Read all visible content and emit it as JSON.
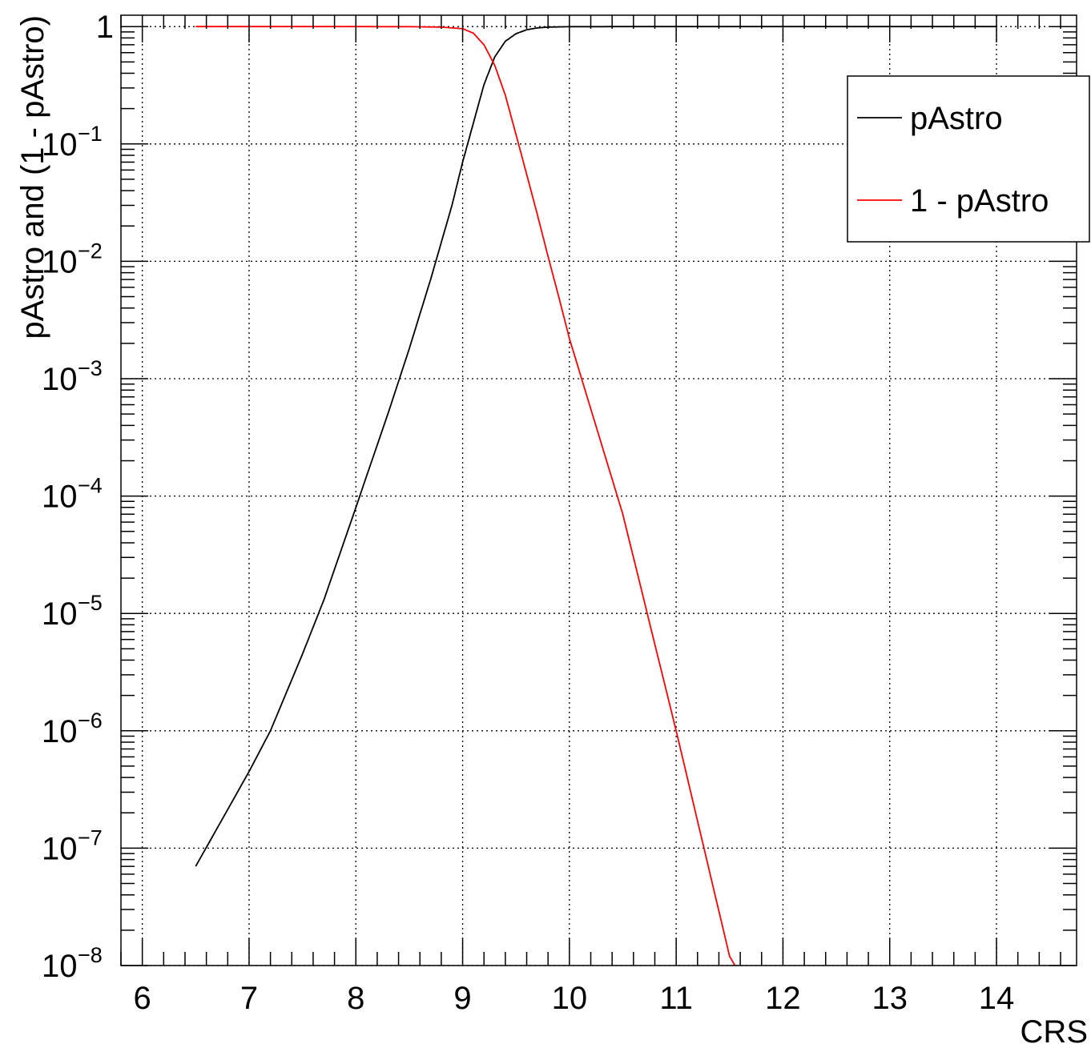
{
  "chart_data": {
    "type": "line",
    "title": "",
    "xlabel": "CRS",
    "ylabel": "pAstro and (1 - pAstro)",
    "xlim": [
      5.8,
      14.75
    ],
    "ylim": [
      1e-08,
      1.25
    ],
    "yscale": "log",
    "grid": true,
    "legend_position": "top-right",
    "x_tick_labels": [
      "6",
      "7",
      "8",
      "9",
      "10",
      "11",
      "12",
      "13",
      "14"
    ],
    "y_tick_labels": [
      {
        "base": "1",
        "exp": ""
      },
      {
        "base": "10",
        "exp": "−1"
      },
      {
        "base": "10",
        "exp": "−2"
      },
      {
        "base": "10",
        "exp": "−3"
      },
      {
        "base": "10",
        "exp": "−4"
      },
      {
        "base": "10",
        "exp": "−5"
      },
      {
        "base": "10",
        "exp": "−6"
      },
      {
        "base": "10",
        "exp": "−7"
      },
      {
        "base": "10",
        "exp": "−8"
      }
    ],
    "series": [
      {
        "name": "pAstro",
        "color": "#000000",
        "x": [
          6.5,
          7.0,
          7.2,
          7.5,
          7.7,
          8.0,
          8.3,
          8.5,
          8.7,
          8.9,
          9.0,
          9.1,
          9.2,
          9.3,
          9.4,
          9.5,
          9.6,
          9.7,
          9.8,
          10.0,
          10.5,
          11.0,
          12.0,
          13.0,
          14.0
        ],
        "y": [
          7e-08,
          4.5e-07,
          1e-06,
          4.5e-06,
          1.3e-05,
          8e-05,
          0.0005,
          0.0018,
          0.007,
          0.03,
          0.07,
          0.15,
          0.32,
          0.55,
          0.75,
          0.87,
          0.94,
          0.975,
          0.99,
          0.998,
          0.9999,
          1.0,
          1.0,
          1.0,
          1.0
        ]
      },
      {
        "name": "1 - pAstro",
        "color": "#ff0000",
        "x": [
          6.5,
          7.0,
          8.0,
          8.5,
          8.8,
          9.0,
          9.1,
          9.2,
          9.3,
          9.4,
          9.5,
          9.6,
          9.7,
          9.8,
          9.9,
          10.0,
          10.5,
          11.0,
          11.5,
          11.55
        ],
        "y": [
          1.0,
          1.0,
          0.9999,
          0.998,
          0.99,
          0.96,
          0.88,
          0.7,
          0.47,
          0.26,
          0.12,
          0.055,
          0.025,
          0.011,
          0.005,
          0.0022,
          7e-05,
          1e-06,
          1.2e-08,
          1e-08
        ]
      }
    ]
  }
}
